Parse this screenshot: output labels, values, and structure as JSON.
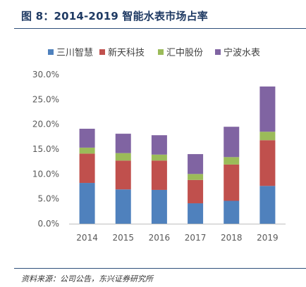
{
  "header": {
    "title": "图 8：2014-2019 智能水表市场占率"
  },
  "footer": {
    "source": "资料来源：公司公告，东兴证券研究所"
  },
  "colors": {
    "title": "#1f3a63",
    "rule": "#2e4f7a",
    "axis": "#bfbfbf",
    "tick_text": "#595959"
  },
  "chart_data": {
    "type": "bar",
    "stacked": true,
    "title": "",
    "xlabel": "",
    "ylabel": "",
    "categories": [
      "2014",
      "2015",
      "2016",
      "2017",
      "2018",
      "2019"
    ],
    "ylim": [
      0,
      30
    ],
    "yticks": [
      0,
      5,
      10,
      15,
      20,
      25,
      30
    ],
    "ytick_labels": [
      "0.0%",
      "5.0%",
      "10.0%",
      "15.0%",
      "20.0%",
      "25.0%",
      "30.0%"
    ],
    "grid": false,
    "legend": "top",
    "series": [
      {
        "name": "三川智慧",
        "color": "#4f81bd",
        "values": [
          8.2,
          6.9,
          6.8,
          4.1,
          4.6,
          7.6
        ]
      },
      {
        "name": "新天科技",
        "color": "#c0504d",
        "values": [
          5.9,
          5.8,
          5.9,
          4.7,
          7.3,
          9.2
        ]
      },
      {
        "name": "汇中股份",
        "color": "#9bbb59",
        "values": [
          1.2,
          1.5,
          1.2,
          1.2,
          1.5,
          1.7
        ]
      },
      {
        "name": "宁波水表",
        "color": "#8064a2",
        "values": [
          3.8,
          3.9,
          3.9,
          4.0,
          6.1,
          9.1
        ]
      }
    ]
  }
}
